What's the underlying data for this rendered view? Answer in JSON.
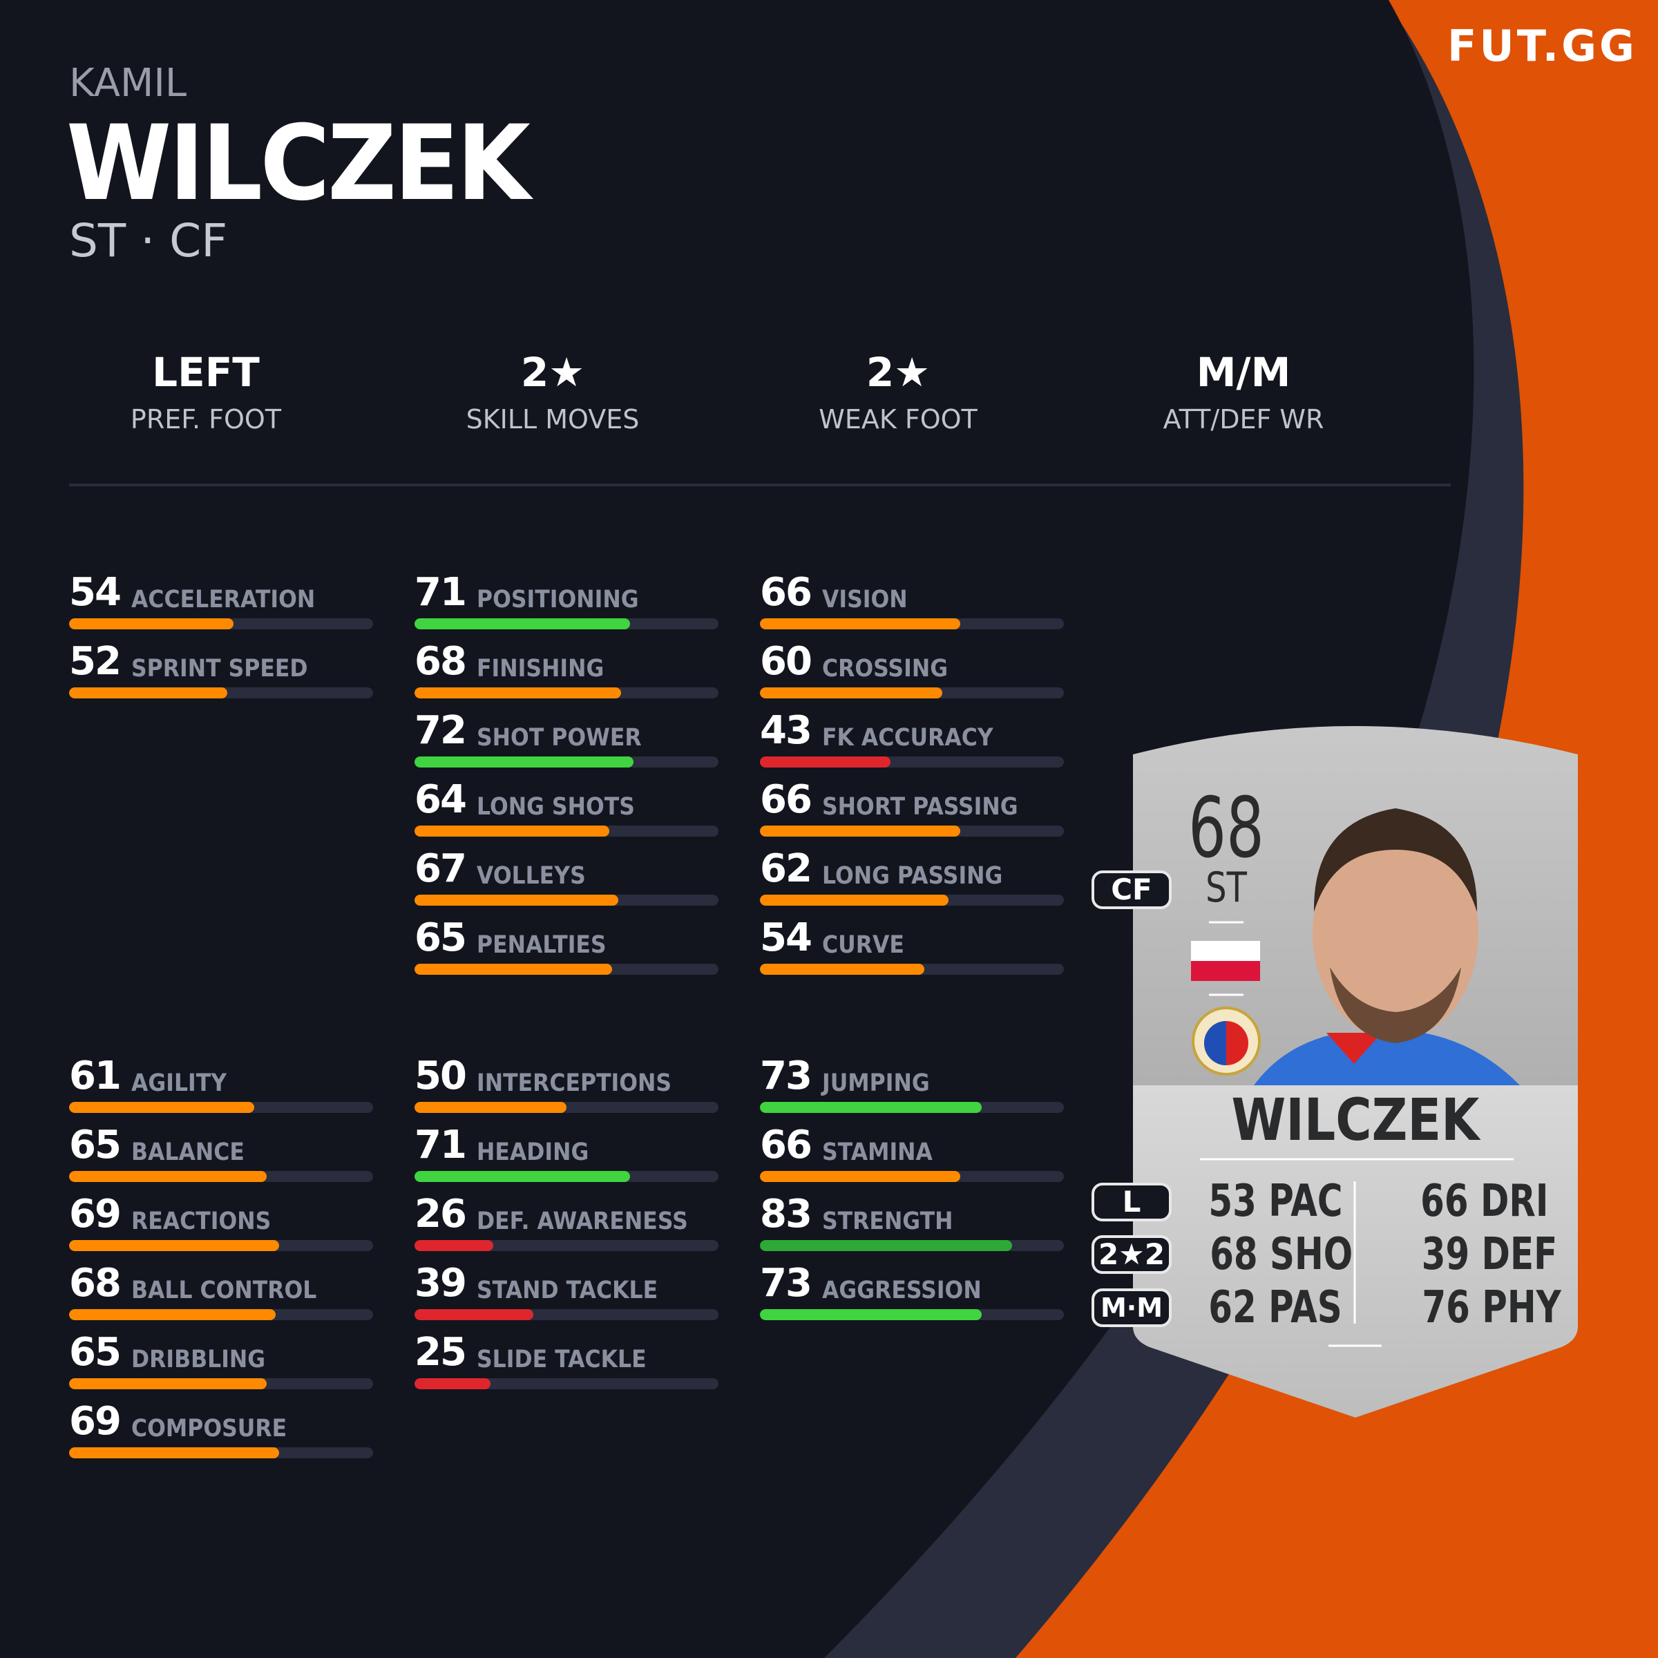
{
  "logo": "FUT.GG",
  "player": {
    "first_name": "KAMIL",
    "last_name": "WILCZEK",
    "positions": "ST · CF"
  },
  "info": [
    {
      "value": "LEFT",
      "label": "PREF. FOOT"
    },
    {
      "value": "2★",
      "label": "SKILL MOVES"
    },
    {
      "value": "2★",
      "label": "WEAK FOOT"
    },
    {
      "value": "M/M",
      "label": "ATT/DEF WR"
    }
  ],
  "colors": {
    "background": "#12151d",
    "accent": "#e05206",
    "track": "#2a2d3d",
    "low": "#e0262d",
    "mid": "#ff8a00",
    "high": "#3fd440",
    "elite": "#2ea836"
  },
  "stats": [
    [
      [
        {
          "v": 54,
          "l": "ACCELERATION"
        },
        {
          "v": 52,
          "l": "SPRINT SPEED"
        }
      ],
      [
        {
          "v": 71,
          "l": "POSITIONING"
        },
        {
          "v": 68,
          "l": "FINISHING"
        },
        {
          "v": 72,
          "l": "SHOT POWER"
        },
        {
          "v": 64,
          "l": "LONG SHOTS"
        },
        {
          "v": 67,
          "l": "VOLLEYS"
        },
        {
          "v": 65,
          "l": "PENALTIES"
        }
      ],
      [
        {
          "v": 66,
          "l": "VISION"
        },
        {
          "v": 60,
          "l": "CROSSING"
        },
        {
          "v": 43,
          "l": "FK ACCURACY"
        },
        {
          "v": 66,
          "l": "SHORT PASSING"
        },
        {
          "v": 62,
          "l": "LONG PASSING"
        },
        {
          "v": 54,
          "l": "CURVE"
        }
      ]
    ],
    [
      [
        {
          "v": 61,
          "l": "AGILITY"
        },
        {
          "v": 65,
          "l": "BALANCE"
        },
        {
          "v": 69,
          "l": "REACTIONS"
        },
        {
          "v": 68,
          "l": "BALL CONTROL"
        },
        {
          "v": 65,
          "l": "DRIBBLING"
        },
        {
          "v": 69,
          "l": "COMPOSURE"
        }
      ],
      [
        {
          "v": 50,
          "l": "INTERCEPTIONS"
        },
        {
          "v": 71,
          "l": "HEADING"
        },
        {
          "v": 26,
          "l": "DEF. AWARENESS"
        },
        {
          "v": 39,
          "l": "STAND TACKLE"
        },
        {
          "v": 25,
          "l": "SLIDE TACKLE"
        }
      ],
      [
        {
          "v": 73,
          "l": "JUMPING"
        },
        {
          "v": 66,
          "l": "STAMINA"
        },
        {
          "v": 83,
          "l": "STRENGTH"
        },
        {
          "v": 73,
          "l": "AGGRESSION"
        }
      ]
    ]
  ],
  "card": {
    "rating": "68",
    "position": "ST",
    "name": "WILCZEK",
    "alt_position": "CF",
    "foot": "L",
    "skills_weak": "2★2",
    "work_rates": "M·M",
    "face_stats": [
      {
        "v": "53",
        "l": "PAC"
      },
      {
        "v": "68",
        "l": "SHO"
      },
      {
        "v": "62",
        "l": "PAS"
      },
      {
        "v": "66",
        "l": "DRI"
      },
      {
        "v": "39",
        "l": "DEF"
      },
      {
        "v": "76",
        "l": "PHY"
      }
    ],
    "nation": "poland-flag",
    "club": "piast-gliwice-crest"
  }
}
